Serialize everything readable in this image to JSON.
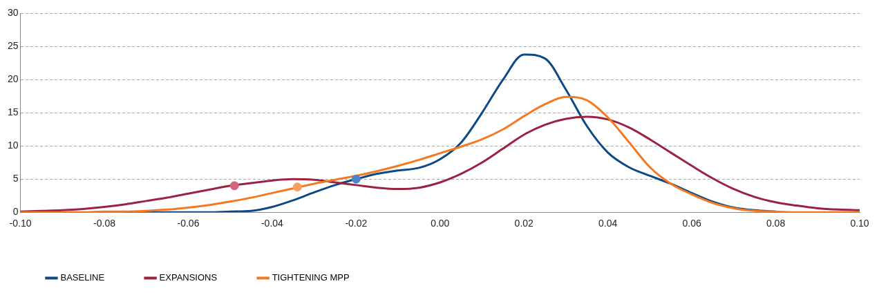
{
  "chart_data": {
    "type": "line",
    "x": [
      -0.1,
      -0.095,
      -0.09,
      -0.085,
      -0.08,
      -0.075,
      -0.07,
      -0.065,
      -0.06,
      -0.055,
      -0.05,
      -0.045,
      -0.04,
      -0.035,
      -0.03,
      -0.025,
      -0.02,
      -0.015,
      -0.01,
      -0.005,
      0,
      0.005,
      0.01,
      0.015,
      0.02,
      0.025,
      0.03,
      0.035,
      0.04,
      0.045,
      0.05,
      0.055,
      0.06,
      0.065,
      0.07,
      0.075,
      0.08,
      0.085,
      0.09,
      0.095,
      0.1
    ],
    "series": [
      {
        "name": "BASELINE",
        "color": "#0d4a85",
        "values": [
          null,
          null,
          null,
          null,
          null,
          0,
          0,
          0,
          0,
          0,
          0.1,
          0.2,
          0.8,
          1.8,
          3,
          4.1,
          5,
          5.8,
          6.3,
          6.7,
          8,
          10.5,
          15,
          20,
          23.8,
          23.2,
          18.5,
          13,
          9,
          6.8,
          5.5,
          4.3,
          2.9,
          1.6,
          0.7,
          0.3,
          0.1,
          null,
          null,
          null,
          null
        ]
      },
      {
        "name": "EXPANSIONS",
        "color": "#9b2240",
        "values": [
          0.1,
          0.2,
          0.3,
          0.5,
          0.8,
          1.2,
          1.7,
          2.2,
          2.8,
          3.4,
          4,
          4.4,
          4.8,
          5,
          4.9,
          4.5,
          4.1,
          3.7,
          3.5,
          3.7,
          4.5,
          5.8,
          7.5,
          9.6,
          11.7,
          13.2,
          14.1,
          14.4,
          14,
          12.8,
          11,
          9,
          7,
          5.1,
          3.5,
          2.3,
          1.5,
          1,
          0.6,
          0.4,
          0.3
        ]
      },
      {
        "name": "TIGHTENING MPP",
        "color": "#f47920",
        "values": [
          0,
          0,
          0,
          0,
          0.1,
          0.1,
          0.2,
          0.4,
          0.7,
          1.1,
          1.6,
          2.2,
          2.9,
          3.6,
          4.3,
          4.9,
          5.5,
          6.2,
          7,
          7.9,
          8.9,
          9.9,
          11,
          12.5,
          14.5,
          16.3,
          17.4,
          16.9,
          14.3,
          10.6,
          6.8,
          4.3,
          2.7,
          1.4,
          0.6,
          0.2,
          0.1,
          0,
          0,
          0,
          0
        ]
      },
      {
        "type": "scatter",
        "marker": "circle",
        "color": "#d4657a",
        "x": [
          -0.049
        ],
        "values": [
          4
        ]
      },
      {
        "type": "scatter",
        "marker": "circle",
        "color": "#f5a060",
        "x": [
          -0.034
        ],
        "values": [
          3.8
        ]
      },
      {
        "type": "scatter",
        "marker": "circle",
        "color": "#4a86c8",
        "x": [
          -0.02
        ],
        "values": [
          5
        ]
      }
    ],
    "xlim": [
      -0.1,
      0.1
    ],
    "xticks": [
      {
        "value": -0.1,
        "label": "-0.10"
      },
      {
        "value": -0.08,
        "label": "-0.08"
      },
      {
        "value": -0.06,
        "label": "-0.06"
      },
      {
        "value": -0.04,
        "label": "-0.04"
      },
      {
        "value": -0.02,
        "label": "-0.02"
      },
      {
        "value": 0,
        "label": "0.00"
      },
      {
        "value": 0.02,
        "label": "0.02"
      },
      {
        "value": 0.04,
        "label": "0.04"
      },
      {
        "value": 0.06,
        "label": "0.06"
      },
      {
        "value": 0.08,
        "label": "0.08"
      },
      {
        "value": 0.1,
        "label": "0.10"
      }
    ],
    "ylim": [
      0,
      30
    ],
    "yticks": [
      0,
      5,
      10,
      15,
      20,
      25,
      30
    ],
    "grid": "y",
    "legend": "bottom left",
    "marker": "none",
    "line_style": "solid"
  }
}
